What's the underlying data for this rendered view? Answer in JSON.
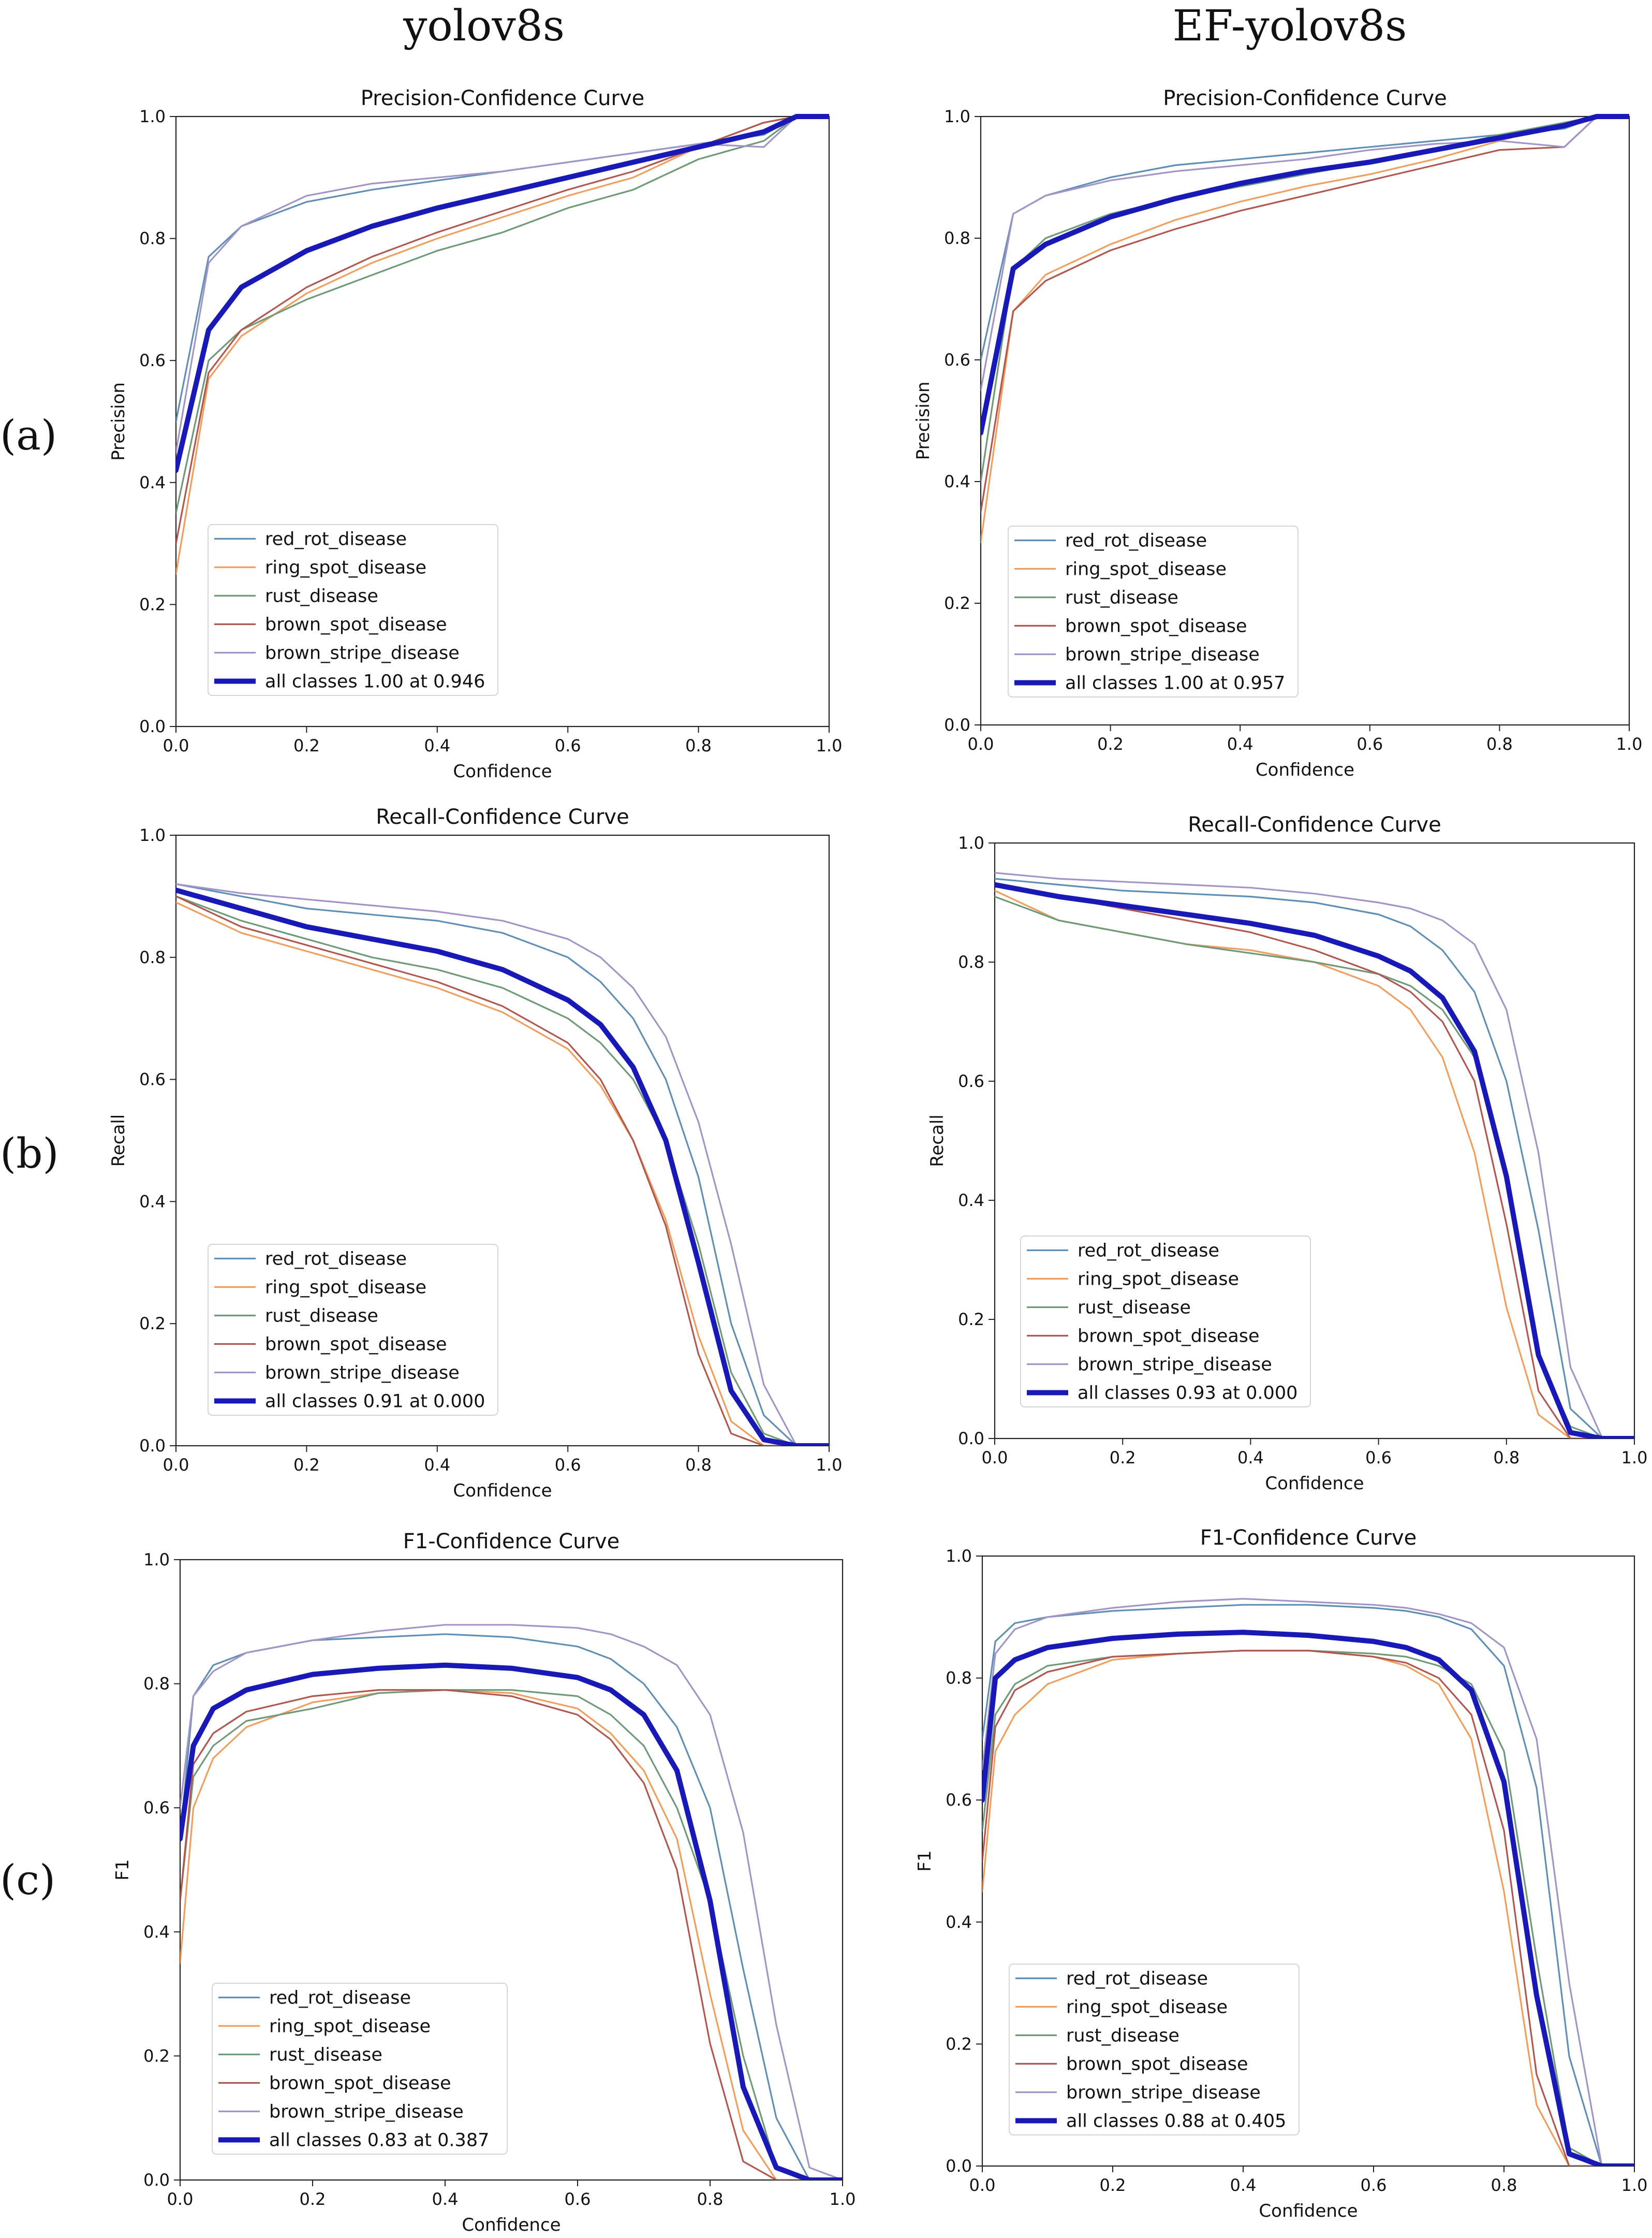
{
  "column_titles": [
    "yolov8s",
    "EF-yolov8s"
  ],
  "row_labels": [
    "(a)",
    "(b)",
    "(c)"
  ],
  "series_names": [
    "red_rot_disease",
    "ring_spot_disease",
    "rust_disease",
    "brown_spot_disease",
    "brown_stripe_disease"
  ],
  "series_colors": {
    "red_rot_disease": "#5f8fb4",
    "ring_spot_disease": "#ef9e5e",
    "rust_disease": "#6f9a79",
    "brown_spot_disease": "#b0574f",
    "brown_stripe_disease": "#a394c6",
    "all_classes": "#1919b8"
  },
  "chart_data": [
    {
      "id": "pc_yolo",
      "kind": "precision",
      "type": "line",
      "title": "Precision-Confidence Curve",
      "xlabel": "Confidence",
      "ylabel": "Precision",
      "xlim": [
        0,
        1
      ],
      "ylim": [
        0,
        1
      ],
      "xticks": [
        "0.0",
        "0.2",
        "0.4",
        "0.6",
        "0.8",
        "1.0"
      ],
      "yticks": [
        "0.0",
        "0.2",
        "0.4",
        "0.6",
        "0.8",
        "1.0"
      ],
      "legend_position": "lower-left",
      "x": [
        0,
        0.05,
        0.1,
        0.2,
        0.3,
        0.4,
        0.5,
        0.6,
        0.7,
        0.8,
        0.9,
        0.95,
        1.0
      ],
      "series": [
        {
          "name": "red_rot_disease",
          "values": [
            0.5,
            0.77,
            0.82,
            0.86,
            0.88,
            0.895,
            0.91,
            0.925,
            0.94,
            0.955,
            0.97,
            1.0,
            1.0
          ]
        },
        {
          "name": "ring_spot_disease",
          "values": [
            0.25,
            0.57,
            0.64,
            0.71,
            0.76,
            0.8,
            0.835,
            0.87,
            0.9,
            0.95,
            0.99,
            1.0,
            1.0
          ]
        },
        {
          "name": "rust_disease",
          "values": [
            0.35,
            0.6,
            0.65,
            0.7,
            0.74,
            0.78,
            0.81,
            0.85,
            0.88,
            0.93,
            0.96,
            1.0,
            1.0
          ]
        },
        {
          "name": "brown_spot_disease",
          "values": [
            0.3,
            0.58,
            0.65,
            0.72,
            0.77,
            0.81,
            0.845,
            0.88,
            0.91,
            0.95,
            0.99,
            1.0,
            1.0
          ]
        },
        {
          "name": "brown_stripe_disease",
          "values": [
            0.45,
            0.76,
            0.82,
            0.87,
            0.89,
            0.9,
            0.91,
            0.925,
            0.94,
            0.955,
            0.95,
            1.0,
            1.0
          ]
        },
        {
          "name": "all classes 1.00 at 0.946",
          "values": [
            0.42,
            0.65,
            0.72,
            0.78,
            0.82,
            0.85,
            0.875,
            0.9,
            0.925,
            0.95,
            0.975,
            1.0,
            1.0
          ],
          "bold": true
        }
      ]
    },
    {
      "id": "pc_ef",
      "kind": "precision",
      "type": "line",
      "title": "Precision-Confidence Curve",
      "xlabel": "Confidence",
      "ylabel": "Precision",
      "xlim": [
        0,
        1
      ],
      "ylim": [
        0,
        1
      ],
      "xticks": [
        "0.0",
        "0.2",
        "0.4",
        "0.6",
        "0.8",
        "1.0"
      ],
      "yticks": [
        "0.0",
        "0.2",
        "0.4",
        "0.6",
        "0.8",
        "1.0"
      ],
      "legend_position": "lower-left",
      "x": [
        0,
        0.05,
        0.1,
        0.2,
        0.3,
        0.4,
        0.5,
        0.6,
        0.7,
        0.8,
        0.9,
        0.95,
        1.0
      ],
      "series": [
        {
          "name": "red_rot_disease",
          "values": [
            0.6,
            0.84,
            0.87,
            0.9,
            0.92,
            0.93,
            0.94,
            0.95,
            0.96,
            0.97,
            0.98,
            1.0,
            1.0
          ]
        },
        {
          "name": "ring_spot_disease",
          "values": [
            0.3,
            0.68,
            0.74,
            0.79,
            0.83,
            0.86,
            0.885,
            0.905,
            0.93,
            0.96,
            0.99,
            1.0,
            1.0
          ]
        },
        {
          "name": "rust_disease",
          "values": [
            0.4,
            0.75,
            0.8,
            0.84,
            0.865,
            0.885,
            0.905,
            0.925,
            0.945,
            0.97,
            0.99,
            1.0,
            1.0
          ]
        },
        {
          "name": "brown_spot_disease",
          "values": [
            0.35,
            0.68,
            0.73,
            0.78,
            0.815,
            0.845,
            0.87,
            0.895,
            0.92,
            0.945,
            0.95,
            1.0,
            1.0
          ]
        },
        {
          "name": "brown_stripe_disease",
          "values": [
            0.55,
            0.84,
            0.87,
            0.895,
            0.91,
            0.92,
            0.93,
            0.945,
            0.955,
            0.96,
            0.95,
            1.0,
            1.0
          ]
        },
        {
          "name": "all classes 1.00 at 0.957",
          "values": [
            0.48,
            0.75,
            0.79,
            0.835,
            0.865,
            0.89,
            0.91,
            0.925,
            0.945,
            0.965,
            0.985,
            1.0,
            1.0
          ],
          "bold": true
        }
      ]
    },
    {
      "id": "rc_yolo",
      "kind": "recall",
      "type": "line",
      "title": "Recall-Confidence Curve",
      "xlabel": "Confidence",
      "ylabel": "Recall",
      "xlim": [
        0,
        1
      ],
      "ylim": [
        0,
        1
      ],
      "xticks": [
        "0.0",
        "0.2",
        "0.4",
        "0.6",
        "0.8",
        "1.0"
      ],
      "yticks": [
        "0.0",
        "0.2",
        "0.4",
        "0.6",
        "0.8",
        "1.0"
      ],
      "legend_position": "lower-left",
      "x": [
        0,
        0.1,
        0.2,
        0.3,
        0.4,
        0.5,
        0.6,
        0.65,
        0.7,
        0.75,
        0.8,
        0.85,
        0.9,
        0.95,
        1.0
      ],
      "series": [
        {
          "name": "red_rot_disease",
          "values": [
            0.92,
            0.9,
            0.88,
            0.87,
            0.86,
            0.84,
            0.8,
            0.76,
            0.7,
            0.6,
            0.44,
            0.2,
            0.05,
            0.0,
            0.0
          ]
        },
        {
          "name": "ring_spot_disease",
          "values": [
            0.89,
            0.84,
            0.81,
            0.78,
            0.75,
            0.71,
            0.65,
            0.59,
            0.5,
            0.37,
            0.18,
            0.04,
            0.0,
            0.0,
            0.0
          ]
        },
        {
          "name": "rust_disease",
          "values": [
            0.9,
            0.86,
            0.83,
            0.8,
            0.78,
            0.75,
            0.7,
            0.66,
            0.6,
            0.5,
            0.33,
            0.12,
            0.02,
            0.0,
            0.0
          ]
        },
        {
          "name": "brown_spot_disease",
          "values": [
            0.9,
            0.85,
            0.82,
            0.79,
            0.76,
            0.72,
            0.66,
            0.6,
            0.5,
            0.36,
            0.15,
            0.02,
            0.0,
            0.0,
            0.0
          ]
        },
        {
          "name": "brown_stripe_disease",
          "values": [
            0.92,
            0.905,
            0.895,
            0.885,
            0.875,
            0.86,
            0.83,
            0.8,
            0.75,
            0.67,
            0.53,
            0.33,
            0.1,
            0.0,
            0.0
          ]
        },
        {
          "name": "all classes 0.91 at 0.000",
          "values": [
            0.91,
            0.88,
            0.85,
            0.83,
            0.81,
            0.78,
            0.73,
            0.69,
            0.62,
            0.5,
            0.3,
            0.09,
            0.01,
            0.0,
            0.0
          ],
          "bold": true
        }
      ]
    },
    {
      "id": "rc_ef",
      "kind": "recall",
      "type": "line",
      "title": "Recall-Confidence Curve",
      "xlabel": "Confidence",
      "ylabel": "Recall",
      "xlim": [
        0,
        1
      ],
      "ylim": [
        0,
        1
      ],
      "xticks": [
        "0.0",
        "0.2",
        "0.4",
        "0.6",
        "0.8",
        "1.0"
      ],
      "yticks": [
        "0.0",
        "0.2",
        "0.4",
        "0.6",
        "0.8",
        "1.0"
      ],
      "legend_position": "lower-left",
      "x": [
        0,
        0.1,
        0.2,
        0.3,
        0.4,
        0.5,
        0.6,
        0.65,
        0.7,
        0.75,
        0.8,
        0.85,
        0.9,
        0.95,
        1.0
      ],
      "series": [
        {
          "name": "red_rot_disease",
          "values": [
            0.94,
            0.93,
            0.92,
            0.915,
            0.91,
            0.9,
            0.88,
            0.86,
            0.82,
            0.75,
            0.6,
            0.35,
            0.05,
            0.0,
            0.0
          ]
        },
        {
          "name": "ring_spot_disease",
          "values": [
            0.92,
            0.87,
            0.85,
            0.83,
            0.82,
            0.8,
            0.76,
            0.72,
            0.64,
            0.48,
            0.22,
            0.04,
            0.0,
            0.0,
            0.0
          ]
        },
        {
          "name": "rust_disease",
          "values": [
            0.91,
            0.87,
            0.85,
            0.83,
            0.815,
            0.8,
            0.78,
            0.76,
            0.72,
            0.64,
            0.45,
            0.14,
            0.02,
            0.0,
            0.0
          ]
        },
        {
          "name": "brown_spot_disease",
          "values": [
            0.93,
            0.91,
            0.89,
            0.87,
            0.85,
            0.82,
            0.78,
            0.75,
            0.7,
            0.6,
            0.36,
            0.08,
            0.0,
            0.0,
            0.0
          ]
        },
        {
          "name": "brown_stripe_disease",
          "values": [
            0.95,
            0.94,
            0.935,
            0.93,
            0.925,
            0.915,
            0.9,
            0.89,
            0.87,
            0.83,
            0.72,
            0.48,
            0.12,
            0.0,
            0.0
          ]
        },
        {
          "name": "all classes 0.93 at 0.000",
          "values": [
            0.93,
            0.91,
            0.895,
            0.88,
            0.865,
            0.845,
            0.81,
            0.785,
            0.74,
            0.65,
            0.44,
            0.14,
            0.01,
            0.0,
            0.0
          ],
          "bold": true
        }
      ]
    },
    {
      "id": "f1_yolo",
      "kind": "f1",
      "type": "line",
      "title": "F1-Confidence Curve",
      "xlabel": "Confidence",
      "ylabel": "F1",
      "xlim": [
        0,
        1
      ],
      "ylim": [
        0,
        1
      ],
      "xticks": [
        "0.0",
        "0.2",
        "0.4",
        "0.6",
        "0.8",
        "1.0"
      ],
      "yticks": [
        "0.0",
        "0.2",
        "0.4",
        "0.6",
        "0.8",
        "1.0"
      ],
      "legend_position": "lower-left",
      "x": [
        0,
        0.02,
        0.05,
        0.1,
        0.2,
        0.3,
        0.4,
        0.5,
        0.6,
        0.65,
        0.7,
        0.75,
        0.8,
        0.85,
        0.9,
        0.95,
        1.0
      ],
      "series": [
        {
          "name": "red_rot_disease",
          "values": [
            0.55,
            0.78,
            0.83,
            0.85,
            0.87,
            0.875,
            0.88,
            0.875,
            0.86,
            0.84,
            0.8,
            0.73,
            0.6,
            0.34,
            0.1,
            0.0,
            0.0
          ]
        },
        {
          "name": "ring_spot_disease",
          "values": [
            0.35,
            0.6,
            0.68,
            0.73,
            0.77,
            0.785,
            0.79,
            0.785,
            0.76,
            0.72,
            0.66,
            0.55,
            0.3,
            0.08,
            0.0,
            0.0,
            0.0
          ]
        },
        {
          "name": "rust_disease",
          "values": [
            0.45,
            0.65,
            0.7,
            0.74,
            0.76,
            0.785,
            0.79,
            0.79,
            0.78,
            0.75,
            0.7,
            0.6,
            0.45,
            0.2,
            0.02,
            0.0,
            0.0
          ]
        },
        {
          "name": "brown_spot_disease",
          "values": [
            0.45,
            0.67,
            0.72,
            0.755,
            0.78,
            0.79,
            0.79,
            0.78,
            0.75,
            0.71,
            0.64,
            0.5,
            0.22,
            0.03,
            0.0,
            0.0,
            0.0
          ]
        },
        {
          "name": "brown_stripe_disease",
          "values": [
            0.6,
            0.78,
            0.82,
            0.85,
            0.87,
            0.885,
            0.895,
            0.895,
            0.89,
            0.88,
            0.86,
            0.83,
            0.75,
            0.56,
            0.25,
            0.02,
            0.0
          ]
        },
        {
          "name": "all classes 0.83 at 0.387",
          "values": [
            0.55,
            0.7,
            0.76,
            0.79,
            0.815,
            0.825,
            0.83,
            0.825,
            0.81,
            0.79,
            0.75,
            0.66,
            0.45,
            0.15,
            0.02,
            0.0,
            0.0
          ],
          "bold": true
        }
      ]
    },
    {
      "id": "f1_ef",
      "kind": "f1",
      "type": "line",
      "title": "F1-Confidence Curve",
      "xlabel": "Confidence",
      "ylabel": "F1",
      "xlim": [
        0,
        1
      ],
      "ylim": [
        0,
        1
      ],
      "xticks": [
        "0.0",
        "0.2",
        "0.4",
        "0.6",
        "0.8",
        "1.0"
      ],
      "yticks": [
        "0.0",
        "0.2",
        "0.4",
        "0.6",
        "0.8",
        "1.0"
      ],
      "legend_position": "lower-left",
      "x": [
        0,
        0.02,
        0.05,
        0.1,
        0.2,
        0.3,
        0.4,
        0.5,
        0.6,
        0.65,
        0.7,
        0.75,
        0.8,
        0.85,
        0.9,
        0.95,
        1.0
      ],
      "series": [
        {
          "name": "red_rot_disease",
          "values": [
            0.7,
            0.86,
            0.89,
            0.9,
            0.91,
            0.915,
            0.92,
            0.92,
            0.915,
            0.91,
            0.9,
            0.88,
            0.82,
            0.62,
            0.18,
            0.0,
            0.0
          ]
        },
        {
          "name": "ring_spot_disease",
          "values": [
            0.45,
            0.68,
            0.74,
            0.79,
            0.83,
            0.84,
            0.845,
            0.845,
            0.835,
            0.82,
            0.79,
            0.7,
            0.45,
            0.1,
            0.0,
            0.0,
            0.0
          ]
        },
        {
          "name": "rust_disease",
          "values": [
            0.55,
            0.74,
            0.79,
            0.82,
            0.835,
            0.84,
            0.845,
            0.845,
            0.84,
            0.835,
            0.82,
            0.79,
            0.68,
            0.34,
            0.03,
            0.0,
            0.0
          ]
        },
        {
          "name": "brown_spot_disease",
          "values": [
            0.5,
            0.72,
            0.78,
            0.81,
            0.835,
            0.84,
            0.845,
            0.845,
            0.835,
            0.825,
            0.8,
            0.74,
            0.55,
            0.15,
            0.0,
            0.0,
            0.0
          ]
        },
        {
          "name": "brown_stripe_disease",
          "values": [
            0.65,
            0.84,
            0.88,
            0.9,
            0.915,
            0.925,
            0.93,
            0.925,
            0.92,
            0.915,
            0.905,
            0.89,
            0.85,
            0.7,
            0.3,
            0.0,
            0.0
          ]
        },
        {
          "name": "all classes 0.88 at 0.405",
          "values": [
            0.6,
            0.8,
            0.83,
            0.85,
            0.865,
            0.872,
            0.875,
            0.87,
            0.86,
            0.85,
            0.83,
            0.78,
            0.63,
            0.28,
            0.02,
            0.0,
            0.0
          ],
          "bold": true
        }
      ]
    }
  ]
}
